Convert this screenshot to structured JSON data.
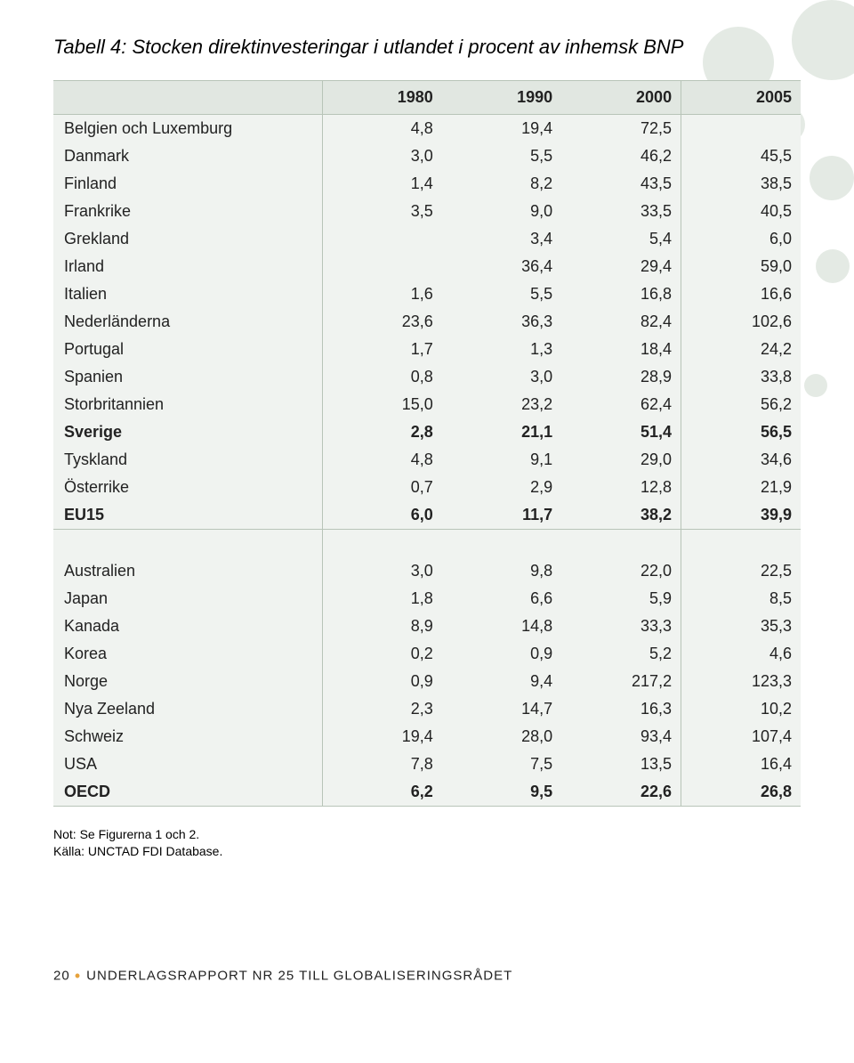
{
  "title": "Tabell 4: Stocken direktinvesteringar i utlandet i procent av inhemsk BNP",
  "columns": [
    "",
    "1980",
    "1990",
    "2000",
    "2005"
  ],
  "group1": [
    {
      "label": "Belgien och Luxemburg",
      "v": [
        "4,8",
        "19,4",
        "72,5",
        ""
      ],
      "bold": false
    },
    {
      "label": "Danmark",
      "v": [
        "3,0",
        "5,5",
        "46,2",
        "45,5"
      ],
      "bold": false
    },
    {
      "label": "Finland",
      "v": [
        "1,4",
        "8,2",
        "43,5",
        "38,5"
      ],
      "bold": false
    },
    {
      "label": "Frankrike",
      "v": [
        "3,5",
        "9,0",
        "33,5",
        "40,5"
      ],
      "bold": false
    },
    {
      "label": "Grekland",
      "v": [
        "",
        "3,4",
        "5,4",
        "6,0"
      ],
      "bold": false
    },
    {
      "label": "Irland",
      "v": [
        "",
        "36,4",
        "29,4",
        "59,0"
      ],
      "bold": false
    },
    {
      "label": "Italien",
      "v": [
        "1,6",
        "5,5",
        "16,8",
        "16,6"
      ],
      "bold": false
    },
    {
      "label": "Nederländerna",
      "v": [
        "23,6",
        "36,3",
        "82,4",
        "102,6"
      ],
      "bold": false
    },
    {
      "label": "Portugal",
      "v": [
        "1,7",
        "1,3",
        "18,4",
        "24,2"
      ],
      "bold": false
    },
    {
      "label": "Spanien",
      "v": [
        "0,8",
        "3,0",
        "28,9",
        "33,8"
      ],
      "bold": false
    },
    {
      "label": "Storbritannien",
      "v": [
        "15,0",
        "23,2",
        "62,4",
        "56,2"
      ],
      "bold": false
    },
    {
      "label": "Sverige",
      "v": [
        "2,8",
        "21,1",
        "51,4",
        "56,5"
      ],
      "bold": true
    },
    {
      "label": "Tyskland",
      "v": [
        "4,8",
        "9,1",
        "29,0",
        "34,6"
      ],
      "bold": false
    },
    {
      "label": "Österrike",
      "v": [
        "0,7",
        "2,9",
        "12,8",
        "21,9"
      ],
      "bold": false
    },
    {
      "label": "EU15",
      "v": [
        "6,0",
        "11,7",
        "38,2",
        "39,9"
      ],
      "bold": true
    }
  ],
  "group2": [
    {
      "label": "Australien",
      "v": [
        "3,0",
        "9,8",
        "22,0",
        "22,5"
      ],
      "bold": false
    },
    {
      "label": "Japan",
      "v": [
        "1,8",
        "6,6",
        "5,9",
        "8,5"
      ],
      "bold": false
    },
    {
      "label": "Kanada",
      "v": [
        "8,9",
        "14,8",
        "33,3",
        "35,3"
      ],
      "bold": false
    },
    {
      "label": "Korea",
      "v": [
        "0,2",
        "0,9",
        "5,2",
        "4,6"
      ],
      "bold": false
    },
    {
      "label": "Norge",
      "v": [
        "0,9",
        "9,4",
        "217,2",
        "123,3"
      ],
      "bold": false
    },
    {
      "label": "Nya Zeeland",
      "v": [
        "2,3",
        "14,7",
        "16,3",
        "10,2"
      ],
      "bold": false
    },
    {
      "label": "Schweiz",
      "v": [
        "19,4",
        "28,0",
        "93,4",
        "107,4"
      ],
      "bold": false
    },
    {
      "label": "USA",
      "v": [
        "7,8",
        "7,5",
        "13,5",
        "16,4"
      ],
      "bold": false
    },
    {
      "label": "OECD",
      "v": [
        "6,2",
        "9,5",
        "22,6",
        "26,8"
      ],
      "bold": true
    }
  ],
  "notes": [
    "Not: Se Figurerna 1 och 2.",
    "Källa: UNCTAD FDI Database."
  ],
  "footer": {
    "page": "20",
    "text": "UNDERLAGSRAPPORT NR 25 TILL GLOBALISERINGSRÅDET"
  },
  "style": {
    "header_bg": "#e1e7e1",
    "body_bg": "#f0f3f0",
    "grid": "#b8c4b8",
    "circle_color": "#cdd9cd",
    "dot_color": "#e6a23c"
  }
}
